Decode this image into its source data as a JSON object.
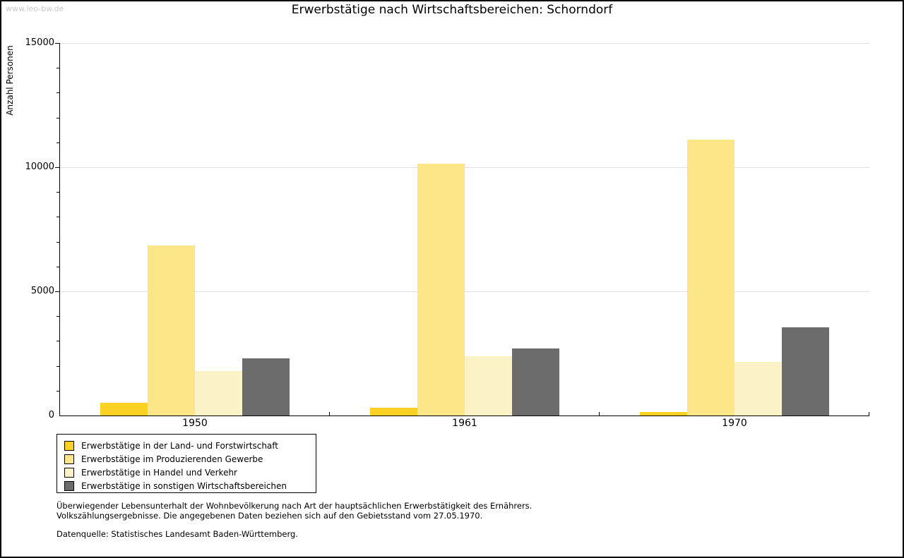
{
  "watermark": "www.leo-bw.de",
  "chart_data": {
    "type": "bar",
    "title": "Erwerbstätige nach Wirtschaftsbereichen: Schorndorf",
    "xlabel": "",
    "ylabel": "Anzahl Personen",
    "categories": [
      "1950",
      "1961",
      "1970"
    ],
    "series": [
      {
        "name": "Erwerbstätige in der Land- und Forstwirtschaft",
        "color": "#fcd125",
        "values": [
          500,
          300,
          150
        ]
      },
      {
        "name": "Erwerbstätige im Produzierenden Gewerbe",
        "color": "#fce687",
        "values": [
          6850,
          10150,
          11100
        ]
      },
      {
        "name": "Erwerbstätige in Handel und Verkehr",
        "color": "#fbf2c8",
        "values": [
          1800,
          2400,
          2150
        ]
      },
      {
        "name": "Erwerbstätige in sonstigen Wirtschaftsbereichen",
        "color": "#6c6c6c",
        "values": [
          2300,
          2700,
          3550
        ]
      }
    ],
    "ylim": [
      0,
      15000
    ],
    "y_major_step": 5000,
    "y_minor_step": 1000,
    "grid": "horizontal major gridlines, light gray",
    "legend_position": "bottom-left box"
  },
  "notes": {
    "line1": "Überwiegender Lebensunterhalt der Wohnbevölkerung nach Art der hauptsächlichen Erwerbstätigkeit des Ernährers.",
    "line2": "Volkszählungsergebnisse. Die angegebenen Daten beziehen sich auf den Gebietsstand vom 27.05.1970.",
    "source": "Datenquelle: Statistisches Landesamt Baden-Württemberg."
  }
}
